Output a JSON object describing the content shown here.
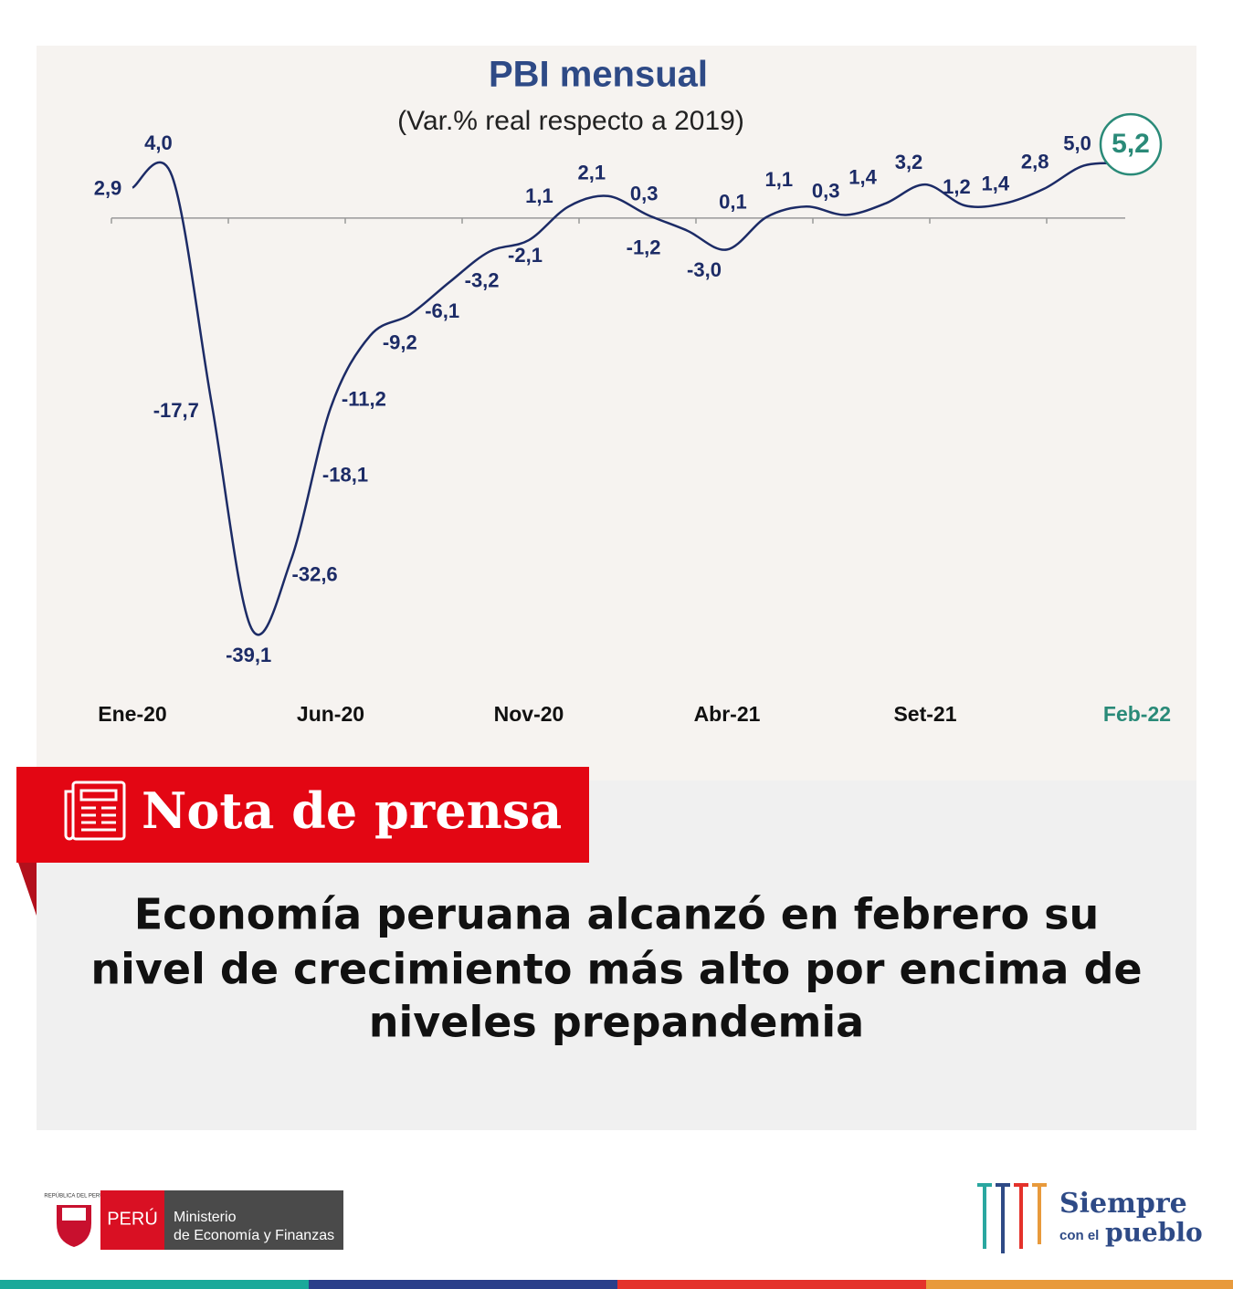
{
  "chart_data": {
    "type": "line",
    "title": "PBI mensual",
    "subtitle": "(Var.% real respecto a 2019)",
    "categories": [
      "Ene-20",
      null,
      null,
      null,
      null,
      "Jun-20",
      null,
      null,
      null,
      null,
      "Nov-20",
      null,
      null,
      null,
      null,
      "Abr-21",
      null,
      null,
      null,
      null,
      "Set-21",
      null,
      null,
      null,
      null,
      "Feb-22"
    ],
    "values": [
      2.9,
      4.0,
      -17.7,
      -39.1,
      -32.6,
      -18.1,
      -11.2,
      -9.2,
      -6.1,
      -3.2,
      -2.1,
      1.1,
      2.1,
      0.3,
      -1.2,
      -3.0,
      0.1,
      1.1,
      0.3,
      1.4,
      3.2,
      1.2,
      1.4,
      2.8,
      5.0,
      5.2
    ],
    "value_labels": [
      "2,9",
      "4,0",
      "-17,7",
      "-39,1",
      "-32,6",
      "-18,1",
      "-11,2",
      "-9,2",
      "-6,1",
      "-3,2",
      "-2,1",
      "1,1",
      "2,1",
      "0,3",
      "-1,2",
      "-3,0",
      "0,1",
      "1,1",
      "0,3",
      "1,4",
      "3,2",
      "1,2",
      "1,4",
      "2,8",
      "5,0",
      "5,2"
    ],
    "color": "#1c2b66",
    "highlight_color": "#2a8a78",
    "ylim": [
      -43,
      8
    ]
  },
  "press_note": {
    "label": "Nota de prensa",
    "headline": [
      "Economía peruana alcanzó en febrero su",
      "nivel de crecimiento más alto por encima de",
      "niveles prepandemia"
    ]
  },
  "footer": {
    "country": "PERÚ",
    "ministry": [
      "Ministerio",
      "de Economía y Finanzas"
    ],
    "seal": "REPÚBLICA DEL PERÚ",
    "slogan": [
      "Siempre",
      "con el",
      "pueblo"
    ]
  }
}
